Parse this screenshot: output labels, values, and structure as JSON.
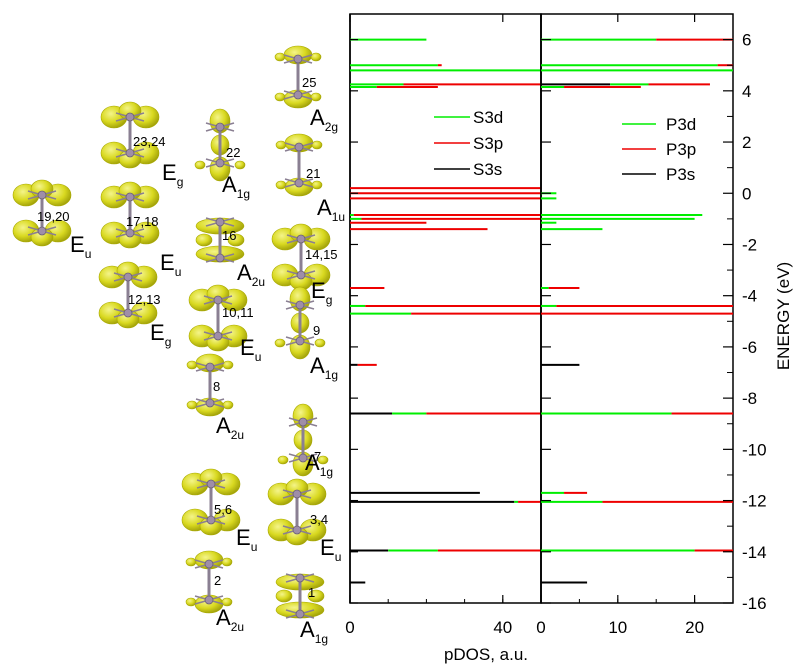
{
  "colors": {
    "d": "#00ee00",
    "p": "#ee0000",
    "s": "#000000",
    "lobe": "#e0e02a",
    "lobe_shade": "#a8a800",
    "atom": "#9f8ea8",
    "bond": "#8a7f92"
  },
  "orbitals": [
    {
      "num": "19,20",
      "sym": "E",
      "sub": "u"
    },
    {
      "num": "23,24",
      "sym": "E",
      "sub": "g"
    },
    {
      "num": "17,18",
      "sym": "E",
      "sub": "u"
    },
    {
      "num": "12,13",
      "sym": "E",
      "sub": "g"
    },
    {
      "num": "22",
      "sym": "A",
      "sub": "1g"
    },
    {
      "num": "16",
      "sym": "A",
      "sub": "2u"
    },
    {
      "num": "10,11",
      "sym": "E",
      "sub": "u"
    },
    {
      "num": "8",
      "sym": "A",
      "sub": "2u"
    },
    {
      "num": "5,6",
      "sym": "E",
      "sub": "u"
    },
    {
      "num": "2",
      "sym": "A",
      "sub": "2u"
    },
    {
      "num": "25",
      "sym": "A",
      "sub": "2g"
    },
    {
      "num": "21",
      "sym": "A",
      "sub": "1u"
    },
    {
      "num": "14,15",
      "sym": "E",
      "sub": "g"
    },
    {
      "num": "9",
      "sym": "A",
      "sub": "1g"
    },
    {
      "num": "7",
      "sym": "A",
      "sub": "1g"
    },
    {
      "num": "3,4",
      "sym": "E",
      "sub": "u"
    },
    {
      "num": "1",
      "sym": "A",
      "sub": "1g"
    }
  ],
  "chart_data": {
    "type": "bar",
    "orientation": "horizontal",
    "stacked": true,
    "xlabel": "pDOS, a.u.",
    "ylabel": "ENERGY (eV)",
    "ylim": [
      -16,
      7
    ],
    "y_ticks": [
      "6",
      "4",
      "2",
      "0",
      "-2",
      "-4",
      "-6",
      "-8",
      "-10",
      "-12",
      "-14",
      "-16"
    ],
    "panels": [
      {
        "xlim": [
          0,
          50
        ],
        "x_ticks": [
          0,
          40
        ],
        "x_tick_labels": [
          "0",
          "40"
        ],
        "legend": {
          "position": "upper-right",
          "entries": [
            "S3d",
            "S3p",
            "S3s"
          ]
        },
        "series": [
          {
            "name": "S3d",
            "component": "d"
          },
          {
            "name": "S3p",
            "component": "p"
          },
          {
            "name": "S3s",
            "component": "s"
          }
        ],
        "levels": [
          {
            "energy": 6.0,
            "s": 0,
            "p": 0,
            "d": 20
          },
          {
            "energy": 5.0,
            "s": 0,
            "p": 1,
            "d": 23
          },
          {
            "energy": 4.8,
            "s": 0,
            "p": 0,
            "d": 50
          },
          {
            "energy": 4.25,
            "s": 0,
            "p": 36,
            "d": 14
          },
          {
            "energy": 4.15,
            "s": 0,
            "p": 16,
            "d": 7
          },
          {
            "energy": 0.2,
            "s": 0,
            "p": 50,
            "d": 0
          },
          {
            "energy": 0.0,
            "s": 0,
            "p": 50,
            "d": 0
          },
          {
            "energy": -0.2,
            "s": 0,
            "p": 50,
            "d": 0
          },
          {
            "energy": -0.85,
            "s": 0,
            "p": 49,
            "d": 1
          },
          {
            "energy": -1.0,
            "s": 0,
            "p": 47,
            "d": 3
          },
          {
            "energy": -1.15,
            "s": 0,
            "p": 20,
            "d": 0
          },
          {
            "energy": -1.4,
            "s": 0,
            "p": 36,
            "d": 0
          },
          {
            "energy": -3.7,
            "s": 0,
            "p": 9,
            "d": 0
          },
          {
            "energy": -4.4,
            "s": 0,
            "p": 46,
            "d": 4
          },
          {
            "energy": -4.7,
            "s": 0,
            "p": 34,
            "d": 16
          },
          {
            "energy": -6.7,
            "s": 2,
            "p": 5,
            "d": 0
          },
          {
            "energy": -8.6,
            "s": 11,
            "p": 30,
            "d": 9
          },
          {
            "energy": -11.7,
            "s": 34,
            "p": 0,
            "d": 0
          },
          {
            "energy": -12.05,
            "s": 43,
            "p": 6,
            "d": 1
          },
          {
            "energy": -13.95,
            "s": 10,
            "p": 27,
            "d": 13
          },
          {
            "energy": -15.2,
            "s": 4,
            "p": 0,
            "d": 0
          }
        ]
      },
      {
        "xlim": [
          0,
          25
        ],
        "x_ticks": [
          0,
          10,
          20
        ],
        "x_tick_labels": [
          "0",
          "10",
          "20"
        ],
        "legend": {
          "position": "upper-right",
          "entries": [
            "P3d",
            "P3p",
            "P3s"
          ]
        },
        "series": [
          {
            "name": "P3d",
            "component": "d"
          },
          {
            "name": "P3p",
            "component": "p"
          },
          {
            "name": "P3s",
            "component": "s"
          }
        ],
        "levels": [
          {
            "energy": 6.0,
            "s": 0,
            "p": 10,
            "d": 15
          },
          {
            "energy": 5.0,
            "s": 0,
            "p": 2,
            "d": 23
          },
          {
            "energy": 4.8,
            "s": 0,
            "p": 0,
            "d": 25
          },
          {
            "energy": 4.25,
            "s": 9,
            "p": 8,
            "d": 5
          },
          {
            "energy": 4.15,
            "s": 0,
            "p": 10,
            "d": 3
          },
          {
            "energy": 0.0,
            "s": 0,
            "p": 0,
            "d": 2
          },
          {
            "energy": -0.2,
            "s": 0,
            "p": 0,
            "d": 2
          },
          {
            "energy": -0.85,
            "s": 0,
            "p": 0,
            "d": 21
          },
          {
            "energy": -1.0,
            "s": 0,
            "p": 0,
            "d": 20
          },
          {
            "energy": -1.15,
            "s": 0,
            "p": 0,
            "d": 2
          },
          {
            "energy": -1.4,
            "s": 0,
            "p": 0,
            "d": 8
          },
          {
            "energy": -3.7,
            "s": 0,
            "p": 4,
            "d": 1
          },
          {
            "energy": -4.4,
            "s": 0,
            "p": 23,
            "d": 2
          },
          {
            "energy": -4.7,
            "s": 0,
            "p": 25,
            "d": 0
          },
          {
            "energy": -6.7,
            "s": 5,
            "p": 0,
            "d": 0
          },
          {
            "energy": -8.6,
            "s": 0,
            "p": 8,
            "d": 17
          },
          {
            "energy": -11.7,
            "s": 0,
            "p": 3,
            "d": 3
          },
          {
            "energy": -12.05,
            "s": 0,
            "p": 17,
            "d": 8
          },
          {
            "energy": -13.95,
            "s": 0,
            "p": 5,
            "d": 20
          },
          {
            "energy": -15.2,
            "s": 6,
            "p": 0,
            "d": 0
          }
        ]
      }
    ]
  }
}
